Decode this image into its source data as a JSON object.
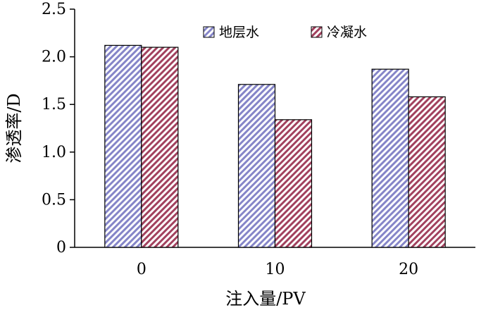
{
  "chart_data": {
    "type": "bar",
    "categories": [
      "0",
      "10",
      "20"
    ],
    "series": [
      {
        "name": "地层水",
        "values": [
          2.12,
          1.71,
          1.87
        ],
        "color": "#8585c8"
      },
      {
        "name": "冷凝水",
        "values": [
          2.1,
          1.34,
          1.58
        ],
        "color": "#a2415e"
      }
    ],
    "xlabel": "注入量/PV",
    "ylabel": "渗透率/D",
    "ylim": [
      0,
      2.5
    ],
    "yticks": [
      "0",
      "0.5",
      "1.0",
      "1.5",
      "2.0",
      "2.5"
    ],
    "grid": false,
    "legend_position": "top-right"
  }
}
